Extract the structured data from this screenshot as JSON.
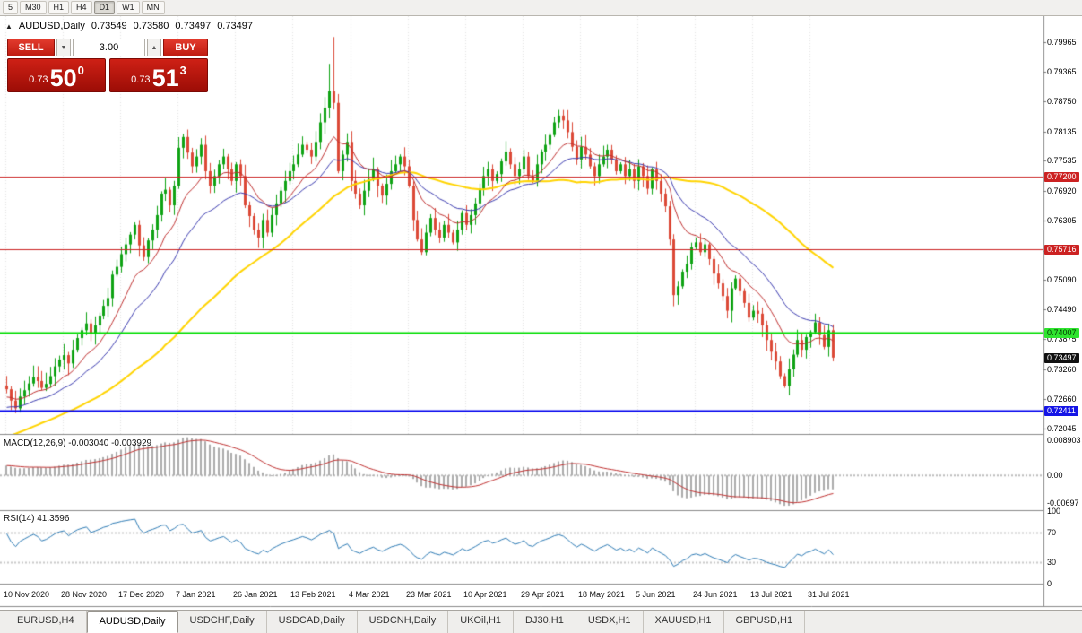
{
  "colors": {
    "up": "#0fa314",
    "down": "#dc4937",
    "ma_fast": "#c03030",
    "ma_mid": "#3a3ab0",
    "ma_slow": "#ffd400",
    "macd_hist": "#ababab",
    "macd_signal": "#c03030",
    "rsi": "#2d7bb5",
    "grid": "#e3e3e3",
    "sep": "#8a8a8a",
    "panel_red": "#b01212"
  },
  "toolbar": {
    "timeframes": [
      "5",
      "M30",
      "H1",
      "H4",
      "D1",
      "W1",
      "MN"
    ],
    "active": "D1"
  },
  "header": {
    "collapse_icon": "▲",
    "symbol": "AUDUSD,Daily",
    "open": "0.73549",
    "high": "0.73580",
    "low": "0.73497",
    "close": "0.73497"
  },
  "trade_panel": {
    "sell_label": "SELL",
    "buy_label": "BUY",
    "volume": "3.00",
    "spinner_down_icon": "▼",
    "spinner_up_icon": "▲",
    "sell_price": {
      "small": "0.73",
      "big": "50",
      "sup": "0"
    },
    "buy_price": {
      "small": "0.73",
      "big": "51",
      "sup": "3"
    }
  },
  "price_axis": {
    "ticks": [
      "0.79965",
      "0.79365",
      "0.78750",
      "0.78135",
      "0.77535",
      "0.76920",
      "0.76305",
      "0.75690",
      "0.75090",
      "0.74490",
      "0.73875",
      "0.73260",
      "0.72660",
      "0.72045"
    ]
  },
  "hlines": [
    {
      "price": 0.772,
      "label": "0.77200",
      "color": "#cc2222",
      "bg": "#cc2222",
      "fg": "#ffffff",
      "width": 1
    },
    {
      "price": 0.75716,
      "label": "0.75716",
      "color": "#cc2222",
      "bg": "#cc2222",
      "fg": "#ffffff",
      "width": 1
    },
    {
      "price": 0.74007,
      "label": "0.74007",
      "color": "#00dd00",
      "bg": "#2fe42f",
      "fg": "#003300",
      "width": 2
    },
    {
      "price": 0.72411,
      "label": "0.72411",
      "color": "#0000ee",
      "bg": "#1515e6",
      "fg": "#ffffff",
      "width": 2
    }
  ],
  "current_price": {
    "value": 0.73497,
    "label": "0.73497",
    "bg": "#111111",
    "fg": "#ffffff"
  },
  "macd": {
    "title": "MACD(12,26,9)",
    "values_text": "-0.003040 -0.003929",
    "axis": [
      "0.008903",
      "0.00",
      "-0.00697"
    ]
  },
  "rsi": {
    "title": "RSI(14)",
    "value_text": "41.3596",
    "axis": [
      "100",
      "70",
      "30",
      "0"
    ],
    "levels": [
      70,
      30
    ]
  },
  "tabs": [
    {
      "label": "EURUSD,H4",
      "active": false
    },
    {
      "label": "AUDUSD,Daily",
      "active": true
    },
    {
      "label": "USDCHF,Daily",
      "active": false
    },
    {
      "label": "USDCAD,Daily",
      "active": false
    },
    {
      "label": "USDCNH,Daily",
      "active": false
    },
    {
      "label": "UKOil,H1",
      "active": false
    },
    {
      "label": "DJ30,H1",
      "active": false
    },
    {
      "label": "USDX,H1",
      "active": false
    },
    {
      "label": "XAUUSD,H1",
      "active": false
    },
    {
      "label": "GBPUSD,H1",
      "active": false
    }
  ],
  "chart_data": {
    "type": "candlestick",
    "symbol": "AUDUSD",
    "timeframe": "Daily",
    "price_range": {
      "top": 0.79965,
      "bottom": 0.72045
    },
    "x_labels": [
      "10 Nov 2020",
      "28 Nov 2020",
      "17 Dec 2020",
      "7 Jan 2021",
      "26 Jan 2021",
      "13 Feb 2021",
      "4 Mar 2021",
      "23 Mar 2021",
      "10 Apr 2021",
      "29 Apr 2021",
      "18 May 2021",
      "5 Jun 2021",
      "24 Jun 2021",
      "13 Jul 2021",
      "31 Jul 2021"
    ],
    "candles_per_label": 13,
    "pre_closes": [
      0.7062,
      0.707,
      0.7078,
      0.7072,
      0.7084,
      0.7092,
      0.7086,
      0.7098,
      0.7106,
      0.71,
      0.7112,
      0.712,
      0.7114,
      0.7126,
      0.7134,
      0.7128,
      0.714,
      0.7148,
      0.7142,
      0.7154,
      0.7162,
      0.7156,
      0.7168,
      0.7176,
      0.717,
      0.7182,
      0.719,
      0.7184,
      0.7196,
      0.7204,
      0.7198,
      0.721,
      0.7218,
      0.7212,
      0.7224,
      0.7232,
      0.7226,
      0.7238,
      0.7246,
      0.724,
      0.7232,
      0.7222,
      0.723,
      0.7242,
      0.7254,
      0.7266,
      0.7278,
      0.727,
      0.7258,
      0.725,
      0.7258,
      0.7268,
      0.7278,
      0.7288,
      0.7292
    ],
    "closes": [
      0.7285,
      0.7262,
      0.7246,
      0.727,
      0.7283,
      0.7297,
      0.731,
      0.7302,
      0.7288,
      0.7296,
      0.7312,
      0.7332,
      0.7346,
      0.7355,
      0.7338,
      0.7366,
      0.739,
      0.7406,
      0.742,
      0.74,
      0.7416,
      0.7436,
      0.7456,
      0.7472,
      0.752,
      0.7536,
      0.7562,
      0.7582,
      0.7602,
      0.7622,
      0.758,
      0.7556,
      0.759,
      0.7612,
      0.7642,
      0.7686,
      0.7694,
      0.7662,
      0.7702,
      0.778,
      0.7802,
      0.777,
      0.7742,
      0.7762,
      0.7786,
      0.7732,
      0.7702,
      0.7722,
      0.7746,
      0.7762,
      0.7736,
      0.7712,
      0.7746,
      0.7722,
      0.7662,
      0.764,
      0.7612,
      0.7596,
      0.7632,
      0.7606,
      0.7642,
      0.7666,
      0.7692,
      0.7712,
      0.7732,
      0.7746,
      0.7766,
      0.7786,
      0.7776,
      0.7762,
      0.7792,
      0.7832,
      0.7862,
      0.7896,
      0.7872,
      0.7732,
      0.7766,
      0.7792,
      0.7712,
      0.7686,
      0.7662,
      0.7692,
      0.7716,
      0.7736,
      0.7702,
      0.7682,
      0.7706,
      0.7732,
      0.7746,
      0.7762,
      0.7742,
      0.7702,
      0.7632,
      0.7592,
      0.7566,
      0.7606,
      0.7636,
      0.7612,
      0.7596,
      0.7622,
      0.7606,
      0.7586,
      0.7612,
      0.7646,
      0.7622,
      0.7642,
      0.7666,
      0.7696,
      0.7722,
      0.7736,
      0.7712,
      0.7726,
      0.7752,
      0.7772,
      0.7746,
      0.7722,
      0.7736,
      0.7762,
      0.7722,
      0.7712,
      0.7746,
      0.7772,
      0.7786,
      0.7806,
      0.7832,
      0.7846,
      0.7836,
      0.7812,
      0.7782,
      0.7756,
      0.7782,
      0.7766,
      0.7742,
      0.7722,
      0.7746,
      0.7762,
      0.7776,
      0.7756,
      0.7732,
      0.7746,
      0.7722,
      0.7736,
      0.7712,
      0.7742,
      0.7722,
      0.7696,
      0.7736,
      0.7712,
      0.7686,
      0.766,
      0.7592,
      0.7478,
      0.7496,
      0.7526,
      0.7542,
      0.7576,
      0.7586,
      0.7566,
      0.7582,
      0.7552,
      0.7522,
      0.7502,
      0.7476,
      0.7446,
      0.7492,
      0.7512,
      0.7486,
      0.7462,
      0.7432,
      0.7446,
      0.744,
      0.7416,
      0.7386,
      0.7362,
      0.7342,
      0.7312,
      0.7292,
      0.7326,
      0.7356,
      0.7386,
      0.7366,
      0.7392,
      0.7402,
      0.7422,
      0.7396,
      0.7372,
      0.7406,
      0.735
    ],
    "high_overrides": {
      "73": 0.7952,
      "74": 0.8007
    },
    "moving_averages": [
      {
        "period": 12,
        "type": "ema",
        "color_key": "ma_fast"
      },
      {
        "period": 24,
        "type": "ema",
        "color_key": "ma_mid"
      },
      {
        "period": 55,
        "type": "sma",
        "color_key": "ma_slow"
      }
    ]
  }
}
